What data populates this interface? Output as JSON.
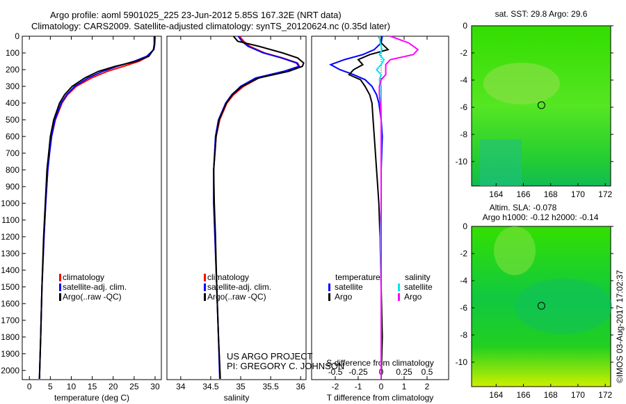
{
  "title": {
    "line1": "Argo profile: aoml 5901025_225 23-Jun-2012 5.85S 167.32E (NRT data)",
    "line2": "Climatology: CARS2009. Satellite-adjusted climatology: synTS_20120624.nc (0.35d later)"
  },
  "colors": {
    "climatology": "#ff0000",
    "satellite": "#0000ff",
    "argo": "#000000",
    "sal_satellite": "#00e5ee",
    "sal_argo": "#ff00ff"
  },
  "credit": {
    "project": "US ARGO PROJECT",
    "pi": "PI: GREGORY C. JOHNSON"
  },
  "stamp": "©IMOS 03-Aug-2017 17:02:37",
  "chart_data": [
    {
      "type": "line",
      "name": "temperature",
      "xlabel": "temperature (deg C)",
      "ylabel": "depth",
      "xlim": [
        -1.7,
        31.5
      ],
      "ylim": [
        0,
        2055
      ],
      "y_reversed": true,
      "xticks": [
        0,
        5,
        10,
        15,
        20,
        25,
        30
      ],
      "yticks": [
        0,
        100,
        200,
        300,
        400,
        500,
        600,
        700,
        800,
        900,
        1000,
        1100,
        1200,
        1300,
        1400,
        1500,
        1600,
        1700,
        1800,
        1900,
        2000
      ],
      "legend": [
        "climatology",
        "satellite-adj. clim.",
        "Argo(..raw -QC)"
      ],
      "legend_position": "bottom-center",
      "depth": [
        0,
        50,
        80,
        120,
        150,
        180,
        210,
        250,
        300,
        350,
        400,
        500,
        600,
        700,
        800,
        1000,
        1200,
        1500,
        1800,
        2050
      ],
      "series": [
        {
          "name": "climatology",
          "values": [
            29.9,
            29.8,
            29.6,
            28.4,
            26.2,
            22.5,
            18.6,
            14.8,
            11.2,
            9.1,
            7.8,
            6.2,
            5.3,
            4.8,
            4.4,
            3.9,
            3.5,
            3.0,
            2.7,
            2.4
          ]
        },
        {
          "name": "satellite-adj. clim.",
          "values": [
            30.0,
            29.9,
            29.7,
            28.0,
            25.0,
            21.0,
            17.5,
            14.0,
            10.8,
            8.9,
            7.6,
            6.1,
            5.3,
            4.8,
            4.4,
            3.9,
            3.5,
            3.0,
            2.7,
            2.4
          ]
        },
        {
          "name": "Argo(..raw -QC)",
          "values": [
            29.8,
            29.8,
            29.6,
            28.5,
            25.5,
            20.5,
            16.5,
            13.2,
            10.2,
            8.4,
            7.2,
            5.8,
            5.0,
            4.6,
            4.2,
            3.8,
            3.4,
            3.0,
            2.7,
            2.4
          ]
        }
      ]
    },
    {
      "type": "line",
      "name": "salinity",
      "xlabel": "salinity",
      "xlim": [
        33.77,
        36.09
      ],
      "ylim": [
        0,
        2055
      ],
      "y_reversed": true,
      "xticks": [
        34,
        34.5,
        35,
        35.5,
        36
      ],
      "legend": [
        "climatology",
        "satellite-adj. clim.",
        "Argo(..raw -QC)"
      ],
      "legend_position": "bottom-center",
      "depth": [
        0,
        30,
        60,
        100,
        130,
        160,
        180,
        210,
        250,
        300,
        350,
        400,
        500,
        600,
        800,
        1000,
        1200,
        1500,
        1800,
        2050
      ],
      "series": [
        {
          "name": "climatology",
          "values": [
            34.98,
            35.05,
            35.15,
            35.4,
            35.7,
            35.95,
            35.98,
            35.75,
            35.3,
            35.05,
            34.88,
            34.77,
            34.65,
            34.59,
            34.55,
            34.55,
            34.57,
            34.6,
            34.63,
            34.66
          ]
        },
        {
          "name": "satellite-adj. clim.",
          "values": [
            34.96,
            35.02,
            35.12,
            35.38,
            35.68,
            35.93,
            35.97,
            35.72,
            35.25,
            35.0,
            34.85,
            34.75,
            34.63,
            34.58,
            34.55,
            34.55,
            34.57,
            34.6,
            34.63,
            34.65
          ]
        },
        {
          "name": "Argo(..raw -QC)",
          "values": [
            34.88,
            34.95,
            35.3,
            35.7,
            35.95,
            36.05,
            36.03,
            35.8,
            35.3,
            35.02,
            34.86,
            34.76,
            34.64,
            34.59,
            34.55,
            34.56,
            34.58,
            34.6,
            34.63,
            34.66
          ]
        }
      ]
    },
    {
      "type": "line",
      "name": "difference from climatology",
      "xlabel": "T difference from climatology",
      "x2label": "S difference from climatology",
      "xlim": [
        -3.03,
        2.94
      ],
      "x2lim": [
        -0.758,
        0.735
      ],
      "ylim": [
        0,
        2055
      ],
      "y_reversed": true,
      "xticks": [
        -2,
        -1,
        0,
        1,
        2
      ],
      "x2ticks": [
        -0.5,
        -0.25,
        0,
        0.25,
        0.5
      ],
      "legend_headers": [
        "temperature",
        "salinity"
      ],
      "legend": [
        "satellite",
        "Argo",
        "satellite",
        "Argo"
      ],
      "legend_position": "bottom-center",
      "depth": [
        0,
        40,
        80,
        110,
        140,
        170,
        200,
        230,
        260,
        300,
        350,
        400,
        500,
        600,
        800,
        1000,
        1200,
        1500,
        1800,
        2050
      ],
      "series": [
        {
          "name": "temperature satellite",
          "axis": "T",
          "values": [
            0.05,
            0.0,
            -0.3,
            -0.8,
            -1.6,
            -2.2,
            -1.8,
            -1.2,
            -0.7,
            -0.4,
            -0.2,
            -0.1,
            0.0,
            0.05,
            0.0,
            0.0,
            0.0,
            0.0,
            0.0,
            0.0
          ]
        },
        {
          "name": "temperature Argo",
          "axis": "T",
          "values": [
            -0.1,
            0.0,
            0.3,
            -0.5,
            -1.0,
            -0.8,
            -1.2,
            -1.4,
            -0.9,
            -0.7,
            -0.5,
            -0.4,
            -0.35,
            -0.3,
            -0.2,
            -0.1,
            -0.05,
            0.0,
            0.05,
            0.0
          ]
        },
        {
          "name": "salinity satellite",
          "axis": "S",
          "values": [
            -0.02,
            -0.01,
            0.01,
            -0.02,
            0.03,
            0.0,
            -0.05,
            0.0,
            -0.02,
            0.0,
            0.0,
            0.0,
            0.0,
            0.0,
            0.0,
            0.0,
            -0.01,
            0.0,
            0.0,
            0.0
          ]
        },
        {
          "name": "salinity Argo",
          "axis": "S",
          "values": [
            0.1,
            0.3,
            0.4,
            0.35,
            0.1,
            0.05,
            0.05,
            0.05,
            0.0,
            -0.02,
            -0.02,
            -0.01,
            0.0,
            0.0,
            0.0,
            0.0,
            0.0,
            0.0,
            0.0,
            0.0
          ]
        }
      ]
    },
    {
      "type": "heatmap",
      "name": "sst map",
      "title": "sat. SST: 29.8 Argo: 29.6",
      "xlim": [
        162.2,
        172.4
      ],
      "ylim": [
        -11.8,
        0
      ],
      "xticks": [
        164,
        166,
        168,
        170,
        172
      ],
      "yticks": [
        0,
        -2,
        -4,
        -6,
        -8,
        -10
      ],
      "marker": {
        "lon": 167.32,
        "lat": -5.85
      }
    },
    {
      "type": "heatmap",
      "name": "sla map",
      "title": "Altim. SLA: -0.078",
      "subtitle": "Argo h1000: -0.12 h2000: -0.14",
      "xlim": [
        162.2,
        172.4
      ],
      "ylim": [
        -11.8,
        0
      ],
      "xticks": [
        164,
        166,
        168,
        170,
        172
      ],
      "yticks": [
        0,
        -2,
        -4,
        -6,
        -8,
        -10
      ],
      "marker": {
        "lon": 167.32,
        "lat": -5.85
      }
    }
  ]
}
